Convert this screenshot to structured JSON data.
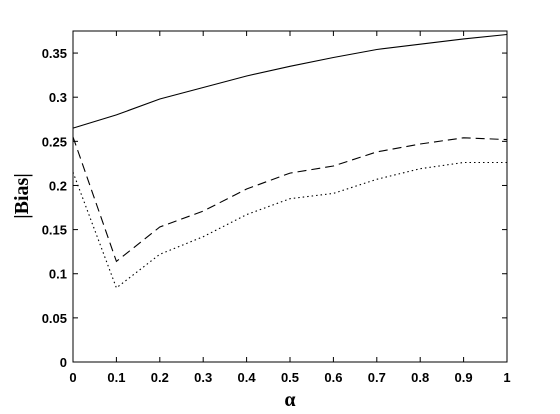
{
  "chart_data": {
    "type": "line",
    "title": "",
    "xlabel": "α",
    "ylabel": "|Bias|",
    "xlim": [
      0,
      1
    ],
    "ylim": [
      0,
      0.375
    ],
    "xticks": [
      0,
      0.1,
      0.2,
      0.3,
      0.4,
      0.5,
      0.6,
      0.7,
      0.8,
      0.9,
      1
    ],
    "xtick_labels": [
      "0",
      "0.1",
      "0.2",
      "0.3",
      "0.4",
      "0.5",
      "0.6",
      "0.7",
      "0.8",
      "0.9",
      "1"
    ],
    "yticks": [
      0,
      0.05,
      0.1,
      0.15,
      0.2,
      0.25,
      0.3,
      0.35
    ],
    "ytick_labels": [
      "0",
      "0.05",
      "0.1",
      "0.15",
      "0.2",
      "0.25",
      "0.3",
      "0.35"
    ],
    "grid": false,
    "legend": "none",
    "x": [
      0,
      0.1,
      0.2,
      0.3,
      0.4,
      0.5,
      0.6,
      0.7,
      0.8,
      0.9,
      1
    ],
    "series": [
      {
        "style": "solid",
        "color": "#000000",
        "values": [
          0.265,
          0.28,
          0.298,
          0.311,
          0.324,
          0.335,
          0.345,
          0.354,
          0.36,
          0.366,
          0.371
        ]
      },
      {
        "style": "dashed",
        "color": "#000000",
        "values": [
          0.255,
          0.114,
          0.153,
          0.171,
          0.196,
          0.214,
          0.222,
          0.238,
          0.247,
          0.254,
          0.252
        ]
      },
      {
        "style": "dotted",
        "color": "#000000",
        "values": [
          0.215,
          0.084,
          0.122,
          0.142,
          0.167,
          0.185,
          0.191,
          0.207,
          0.219,
          0.226,
          0.226
        ]
      }
    ]
  }
}
